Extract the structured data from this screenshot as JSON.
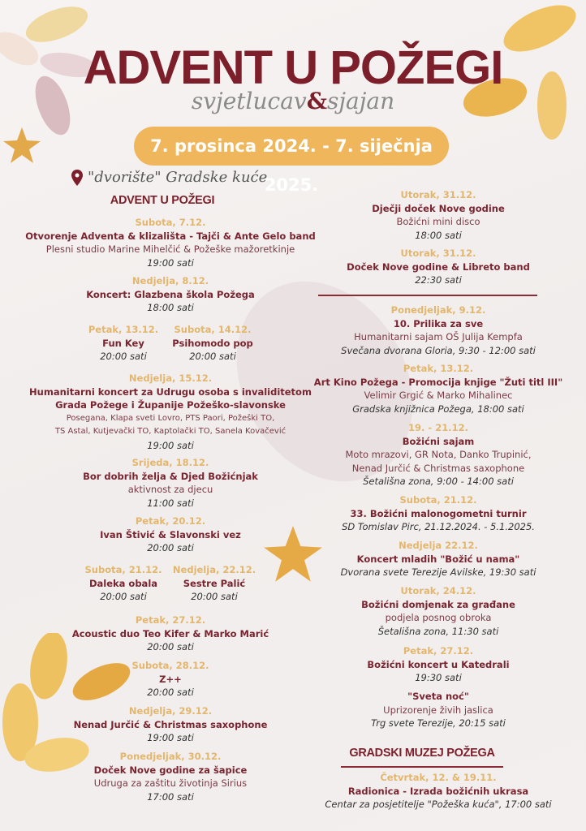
{
  "header": {
    "title": "ADVENT U POŽEGI",
    "subtitle_a": "svjetlucav",
    "subtitle_amp": "&",
    "subtitle_b": "sjajan",
    "dates": "7. prosinca 2024. - 7. siječnja 2025."
  },
  "location": {
    "icon": "map-pin-icon",
    "text": "\"dvorište\" Gradske kuće"
  },
  "colors": {
    "maroon": "#7c1f2b",
    "gold": "#efb65c",
    "date": "#e3b66d"
  },
  "left": {
    "heading": "ADVENT U POŽEGI",
    "events": [
      {
        "date": "Subota, 7.12.",
        "title": "Otvorenje Adventa & klizališta - Tajči & Ante Gelo band",
        "sub": [
          "Plesni studio Marine Mihelčić & Požeške mažoretkinje"
        ],
        "time": "19:00 sati"
      },
      {
        "date": "Nedjelja, 8.12.",
        "title": "Koncert: Glazbena škola Požega",
        "sub": [],
        "time": "18:00 sati"
      },
      {
        "date": "Petak, 13.12.",
        "title": "Fun Key",
        "sub": [],
        "time": "20:00 sati"
      },
      {
        "date": "Subota, 14.12.",
        "title": "Psihomodo pop",
        "sub": [],
        "time": "20:00 sati"
      },
      {
        "date": "Nedjelja, 15.12.",
        "title": "Humanitarni koncert za Udrugu osoba s invaliditetom",
        "title2": "Grada Požege i Županije Požeško-slavonske",
        "sub": [
          "Posegana, Klapa sveti Lovro, PTS Paori, Požeški TO,",
          "TS Astal,  Kutjevački TO, Kaptolački TO, Sanela Kovačević"
        ],
        "time": "19:00 sati"
      },
      {
        "date": "Srijeda, 18.12.",
        "title": "Bor dobrih želja & Djed Božićnjak",
        "sub": [
          "aktivnost za djecu"
        ],
        "time": "11:00 sati"
      },
      {
        "date": "Petak, 20.12.",
        "title": "Ivan Štivić & Slavonski vez",
        "sub": [],
        "time": "20:00 sati"
      },
      {
        "date": "Subota, 21.12.",
        "title": "Daleka obala",
        "sub": [],
        "time": "20:00 sati"
      },
      {
        "date": "Nedjelja, 22.12.",
        "title": "Sestre Palić",
        "sub": [],
        "time": "20:00 sati"
      },
      {
        "date": "Petak, 27.12.",
        "title": "Acoustic duo Teo Kifer & Marko Marić",
        "sub": [],
        "time": "20:00 sati"
      },
      {
        "date": "Subota, 28.12.",
        "title": "Z++",
        "sub": [],
        "time": "20:00 sati"
      },
      {
        "date": "Nedjelja, 29.12.",
        "title": "Nenad Jurčić & Christmas saxophone",
        "sub": [],
        "time": "19:00 sati"
      },
      {
        "date": "Ponedjeljak, 30.12.",
        "title": "Doček Nove godine za šapice",
        "sub": [
          "Udruga za zaštitu životinja Sirius"
        ],
        "time": "17:00 sati"
      }
    ]
  },
  "right": {
    "events": [
      {
        "date": "Utorak, 31.12.",
        "title": "Dječji doček Nove godine",
        "sub": [
          "Božićni mini disco"
        ],
        "time": "18:00 sati"
      },
      {
        "date": "Utorak, 31.12.",
        "title": "Doček Nove godine & Libreto band",
        "sub": [],
        "time": "22:30 sati"
      },
      {
        "date": "Ponedjeljak, 9.12.",
        "title": "10. Prilika za sve",
        "sub": [
          "Humanitarni sajam OŠ Julija Kempfa"
        ],
        "time": "Svečana dvorana Gloria, 9:30 - 12:00 sati"
      },
      {
        "date": "Petak, 13.12.",
        "title": "Art Kino Požega - Promocija knjige \"Žuti titl III\"",
        "sub": [
          "Velimir Grgić & Marko Mihalinec"
        ],
        "time": "Gradska knjižnica Požega, 18:00 sati"
      },
      {
        "date": "19. - 21.12.",
        "title": "Božićni sajam",
        "sub": [
          "Moto mrazovi, GR Nota, Danko Trupinić,",
          "Nenad Jurčić & Christmas saxophone"
        ],
        "time": "Šetališna zona, 9:00 - 14:00 sati"
      },
      {
        "date": "Subota, 21.12.",
        "title": "33. Božićni malonogometni turnir",
        "sub": [],
        "time": "SD Tomislav Pirc, 21.12.2024. - 5.1.2025."
      },
      {
        "date": "Nedjelja 22.12.",
        "title": "Koncert mladih \"Božić u nama\"",
        "sub": [],
        "time": "Dvorana svete Terezije Avilske, 19:30 sati"
      },
      {
        "date": "Utorak, 24.12.",
        "title": "Božićni domjenak za građane",
        "sub": [
          "podjela posnog obroka"
        ],
        "time": "Šetališna zona, 11:30 sati"
      },
      {
        "date": "Petak, 27.12.",
        "title": "Božićni koncert u Katedrali",
        "sub": [],
        "time": "19:30 sati"
      },
      {
        "title": "\"Sveta noć\"",
        "sub": [
          "Uprizorenje živih jaslica"
        ],
        "time": "Trg svete Terezije, 20:15 sati"
      }
    ]
  },
  "museum": {
    "heading": "GRADSKI MUZEJ POŽEGA",
    "events": [
      {
        "date": "Četvrtak, 12. & 19.11.",
        "title": "Radionica - Izrada božićnih ukrasa",
        "sub": [],
        "time": "Centar za posjetitelje \"Požeška kuća\", 17:00 sati"
      }
    ]
  }
}
